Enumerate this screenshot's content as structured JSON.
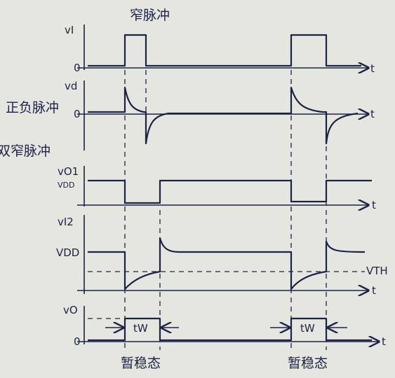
{
  "top_label": "窄脉冲",
  "side_labels": [
    "正负脉冲",
    "双窄脉冲"
  ],
  "axes": [
    {
      "label": "vI",
      "zero": "0",
      "t": "t"
    },
    {
      "label": "vd",
      "zero": "0",
      "t": "t"
    },
    {
      "label": "vO1",
      "level": "VDD",
      "t": "t"
    },
    {
      "label": "vI2",
      "level": "VDD",
      "threshold": "VTH",
      "t": "t"
    },
    {
      "label": "vO",
      "zero": "0",
      "t": "t"
    }
  ],
  "pulse_width": [
    "tW",
    "tW"
  ],
  "state_labels": [
    "暂稳态",
    "暂稳态"
  ]
}
